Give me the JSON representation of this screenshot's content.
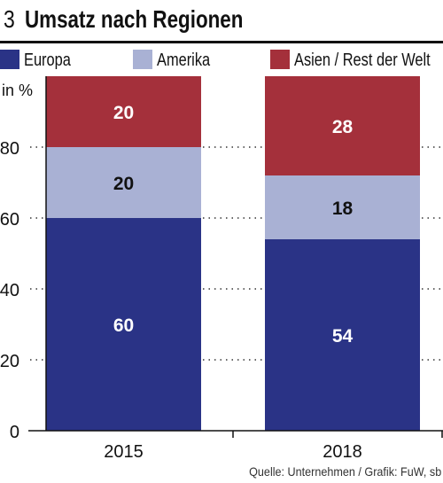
{
  "figure": {
    "number": "3",
    "title": "Umsatz nach Regionen",
    "source": "Quelle: Unternehmen / Grafik: FuW, sb"
  },
  "colors": {
    "europa": "#2a3386",
    "amerika": "#a9b1d4",
    "asien": "#a4303b"
  },
  "chart_data": {
    "type": "bar",
    "stacked": true,
    "title": "Umsatz nach Regionen",
    "ylabel": "in %",
    "xlabel": "",
    "categories": [
      "2015",
      "2018"
    ],
    "ylim": [
      0,
      100
    ],
    "yticks": [
      0,
      20,
      40,
      60,
      80
    ],
    "grid": true,
    "legend_position": "top",
    "series": [
      {
        "name": "Europa",
        "values": [
          60,
          54
        ],
        "color": "#2a3386",
        "labels": [
          "60",
          "54"
        ]
      },
      {
        "name": "Amerika",
        "values": [
          20,
          18
        ],
        "color": "#a9b1d4",
        "labels": [
          "20",
          "18"
        ]
      },
      {
        "name": "Asien / Rest der Welt",
        "values": [
          20,
          28
        ],
        "color": "#a4303b",
        "labels": [
          "20",
          "28"
        ]
      }
    ]
  }
}
